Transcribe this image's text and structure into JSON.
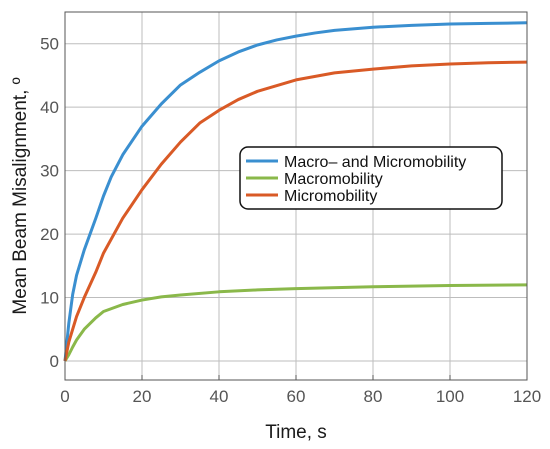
{
  "chart_data": {
    "type": "line",
    "xlabel": "Time, s",
    "ylabel": "Mean Beam Misalignment, º",
    "xlim": [
      0,
      120
    ],
    "ylim": [
      -3,
      55
    ],
    "xticks": [
      0,
      20,
      40,
      60,
      80,
      100,
      120
    ],
    "yticks": [
      0,
      10,
      20,
      30,
      40,
      50
    ],
    "grid": true,
    "legend_position": "center-right",
    "series": [
      {
        "name": "Macro– and Micromobility",
        "color": "#3a8fd0",
        "x": [
          0,
          1,
          2,
          3,
          5,
          8,
          10,
          12,
          15,
          20,
          25,
          30,
          35,
          40,
          45,
          50,
          55,
          60,
          65,
          70,
          80,
          90,
          100,
          110,
          120
        ],
        "y": [
          0,
          6,
          10.5,
          13.5,
          17.5,
          22.5,
          26,
          29,
          32.5,
          37,
          40.5,
          43.5,
          45.5,
          47.3,
          48.7,
          49.8,
          50.6,
          51.2,
          51.7,
          52.1,
          52.6,
          52.9,
          53.1,
          53.2,
          53.3
        ]
      },
      {
        "name": "Macromobility",
        "color": "#8ab84a",
        "x": [
          0,
          1,
          2,
          3,
          5,
          8,
          10,
          15,
          20,
          25,
          30,
          40,
          50,
          60,
          80,
          100,
          120
        ],
        "y": [
          0,
          1,
          2.2,
          3.3,
          5,
          6.8,
          7.8,
          8.9,
          9.6,
          10.1,
          10.4,
          10.9,
          11.2,
          11.4,
          11.7,
          11.9,
          12.0
        ]
      },
      {
        "name": "Micromobility",
        "color": "#d95a26",
        "x": [
          0,
          1,
          2,
          3,
          5,
          8,
          10,
          15,
          20,
          25,
          30,
          35,
          40,
          45,
          50,
          60,
          70,
          80,
          90,
          100,
          110,
          120
        ],
        "y": [
          0,
          3,
          5,
          7,
          10,
          14,
          17,
          22.5,
          27,
          31,
          34.5,
          37.5,
          39.5,
          41.2,
          42.5,
          44.3,
          45.4,
          46,
          46.5,
          46.8,
          47,
          47.1
        ]
      }
    ]
  }
}
